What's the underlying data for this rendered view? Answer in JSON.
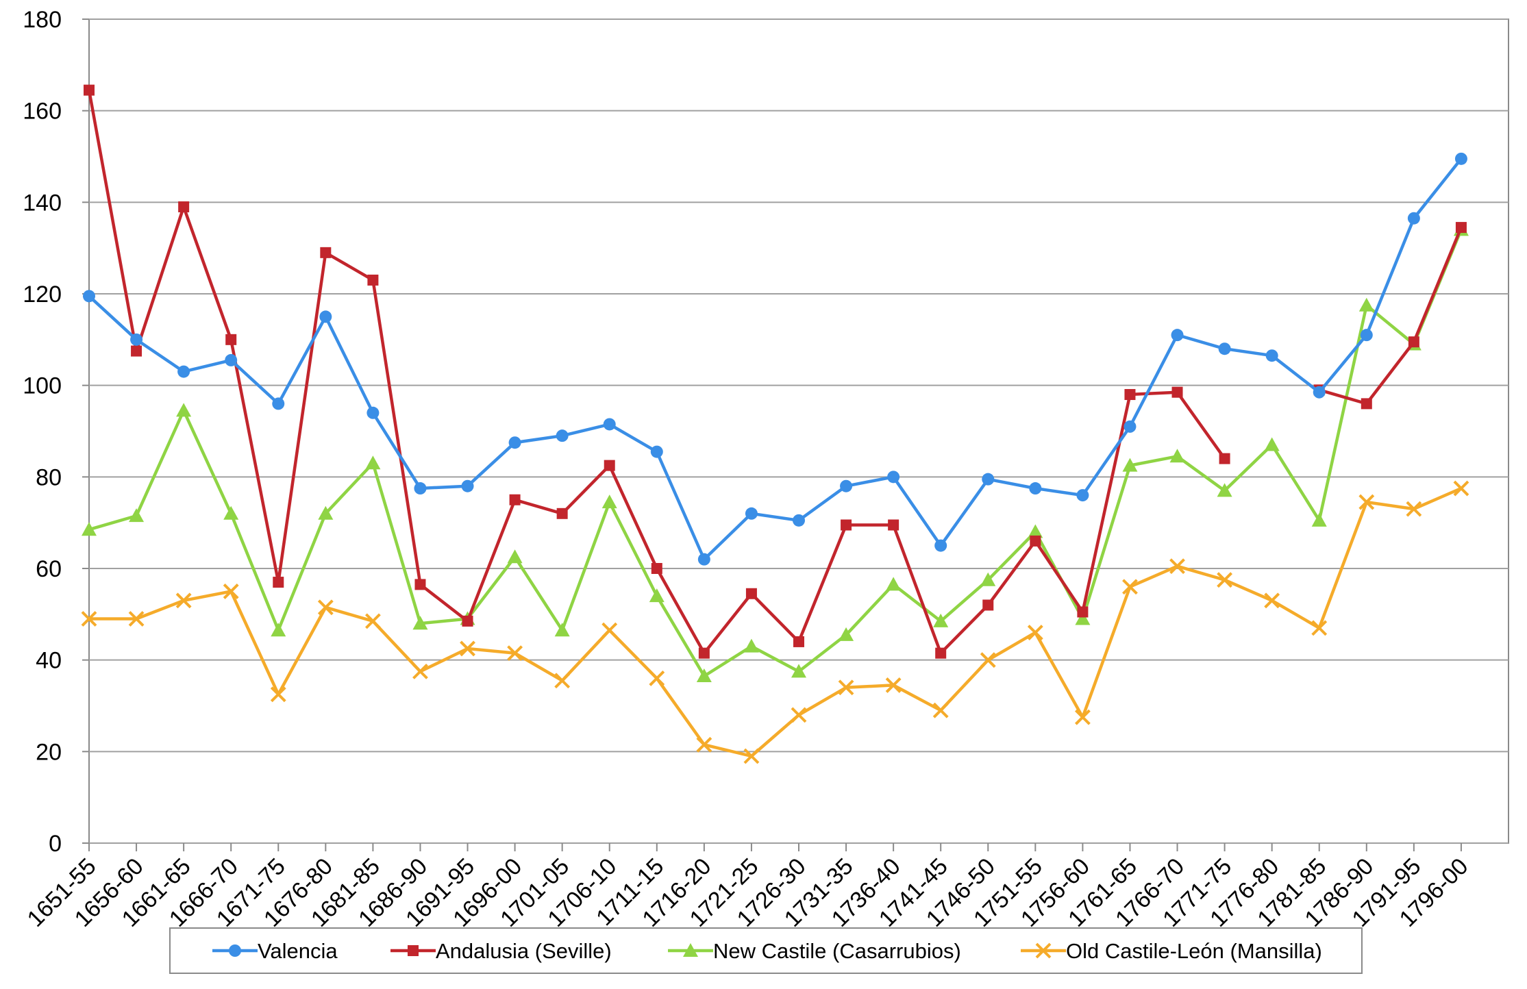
{
  "chart_data": {
    "type": "line",
    "title": "",
    "xlabel": "",
    "ylabel": "",
    "ylim": [
      0,
      180
    ],
    "yticks": [
      0,
      20,
      40,
      60,
      80,
      100,
      120,
      140,
      160,
      180
    ],
    "grid": true,
    "legend_position": "bottom",
    "categories": [
      "1651-55",
      "1656-60",
      "1661-65",
      "1666-70",
      "1671-75",
      "1676-80",
      "1681-85",
      "1686-90",
      "1691-95",
      "1696-00",
      "1701-05",
      "1706-10",
      "1711-15",
      "1716-20",
      "1721-25",
      "1726-30",
      "1731-35",
      "1736-40",
      "1741-45",
      "1746-50",
      "1751-55",
      "1756-60",
      "1761-65",
      "1766-70",
      "1771-75",
      "1776-80",
      "1781-85",
      "1786-90",
      "1791-95",
      "1796-00"
    ],
    "series": [
      {
        "name": "Valencia",
        "color": "#3a8ee6",
        "marker": "circle",
        "values": [
          119.5,
          110,
          103,
          105.5,
          96,
          115,
          94,
          77.5,
          78,
          87.5,
          89,
          91.5,
          85.5,
          62,
          72,
          70.5,
          78,
          80,
          65,
          79.5,
          77.5,
          76,
          91,
          111,
          108,
          106.5,
          98.5,
          111,
          136.5,
          149.5
        ]
      },
      {
        "name": "Andalusia (Seville)",
        "color": "#c2252c",
        "marker": "square",
        "values": [
          164.5,
          107.5,
          139,
          110,
          57,
          129,
          123,
          56.5,
          48.5,
          75,
          72,
          82.5,
          60,
          41.5,
          54.5,
          44,
          69.5,
          69.5,
          41.5,
          52,
          66,
          50.5,
          98,
          98.5,
          84,
          null,
          99,
          96,
          109.5,
          134.5
        ]
      },
      {
        "name": "New Castile (Casarrubios)",
        "color": "#8fd444",
        "marker": "triangle",
        "values": [
          68.5,
          71.5,
          94.5,
          72,
          46.5,
          72,
          83,
          48,
          49,
          62.5,
          46.5,
          74.5,
          54,
          36.5,
          43,
          37.5,
          45.5,
          56.5,
          48.5,
          57.5,
          68,
          49,
          82.5,
          84.5,
          77,
          87,
          70.5,
          117.5,
          109,
          134
        ]
      },
      {
        "name": "Old Castile-León (Mansilla)",
        "color": "#f5ab2a",
        "marker": "x",
        "values": [
          49,
          49,
          53,
          55,
          32.5,
          51.5,
          48.5,
          37.5,
          42.5,
          41.5,
          35.5,
          46.5,
          36,
          21.5,
          19,
          28,
          34,
          34.5,
          29,
          40,
          46,
          27.5,
          56,
          60.5,
          57.5,
          53,
          47,
          74.5,
          73,
          77.5
        ]
      }
    ]
  }
}
